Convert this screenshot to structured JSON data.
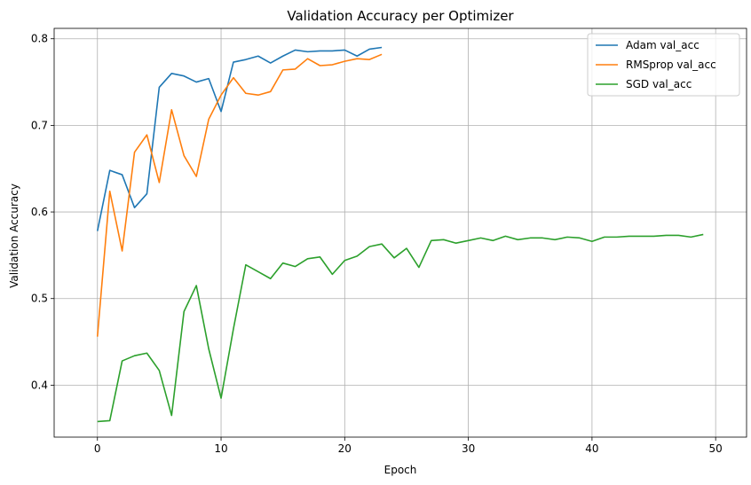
{
  "chart_data": {
    "type": "line",
    "title": "Validation Accuracy per Optimizer",
    "xlabel": "Epoch",
    "ylabel": "Validation Accuracy",
    "xlim": [
      -3.5,
      52.5
    ],
    "ylim": [
      0.34,
      0.812
    ],
    "xticks": [
      0,
      10,
      20,
      30,
      40,
      50
    ],
    "yticks": [
      0.4,
      0.5,
      0.6,
      0.7,
      0.8
    ],
    "xtick_labels": [
      "0",
      "10",
      "20",
      "30",
      "40",
      "50"
    ],
    "ytick_labels": [
      "0.4",
      "0.5",
      "0.6",
      "0.7",
      "0.8"
    ],
    "grid": true,
    "legend_position": "top-right",
    "series": [
      {
        "name": "Adam val_acc",
        "color": "#1f77b4",
        "x": [
          0,
          1,
          2,
          3,
          4,
          5,
          6,
          7,
          8,
          9,
          10,
          11,
          12,
          13,
          14,
          15,
          16,
          17,
          18,
          19,
          20,
          21,
          22,
          23
        ],
        "values": [
          0.578,
          0.648,
          0.643,
          0.605,
          0.621,
          0.744,
          0.76,
          0.757,
          0.75,
          0.754,
          0.716,
          0.773,
          0.776,
          0.78,
          0.772,
          0.78,
          0.787,
          0.785,
          0.786,
          0.786,
          0.787,
          0.78,
          0.788,
          0.79
        ]
      },
      {
        "name": "RMSprop val_acc",
        "color": "#ff7f0e",
        "x": [
          0,
          1,
          2,
          3,
          4,
          5,
          6,
          7,
          8,
          9,
          10,
          11,
          12,
          13,
          14,
          15,
          16,
          17,
          18,
          19,
          20,
          21,
          22,
          23
        ],
        "values": [
          0.456,
          0.624,
          0.555,
          0.669,
          0.689,
          0.634,
          0.718,
          0.665,
          0.641,
          0.707,
          0.735,
          0.755,
          0.737,
          0.735,
          0.739,
          0.764,
          0.765,
          0.777,
          0.769,
          0.77,
          0.774,
          0.777,
          0.776,
          0.782
        ]
      },
      {
        "name": "SGD val_acc",
        "color": "#2ca02c",
        "x": [
          0,
          1,
          2,
          3,
          4,
          5,
          6,
          7,
          8,
          9,
          10,
          11,
          12,
          13,
          14,
          15,
          16,
          17,
          18,
          19,
          20,
          21,
          22,
          23,
          24,
          25,
          26,
          27,
          28,
          29,
          30,
          31,
          32,
          33,
          34,
          35,
          36,
          37,
          38,
          39,
          40,
          41,
          42,
          43,
          44,
          45,
          46,
          47,
          48,
          49
        ],
        "values": [
          0.358,
          0.359,
          0.428,
          0.434,
          0.437,
          0.417,
          0.365,
          0.485,
          0.515,
          0.442,
          0.385,
          0.465,
          0.539,
          0.531,
          0.523,
          0.541,
          0.537,
          0.546,
          0.548,
          0.528,
          0.544,
          0.549,
          0.56,
          0.563,
          0.547,
          0.558,
          0.536,
          0.567,
          0.568,
          0.564,
          0.567,
          0.57,
          0.567,
          0.572,
          0.568,
          0.57,
          0.57,
          0.568,
          0.571,
          0.57,
          0.566,
          0.571,
          0.571,
          0.572,
          0.572,
          0.572,
          0.573,
          0.573,
          0.571,
          0.574
        ]
      }
    ]
  }
}
